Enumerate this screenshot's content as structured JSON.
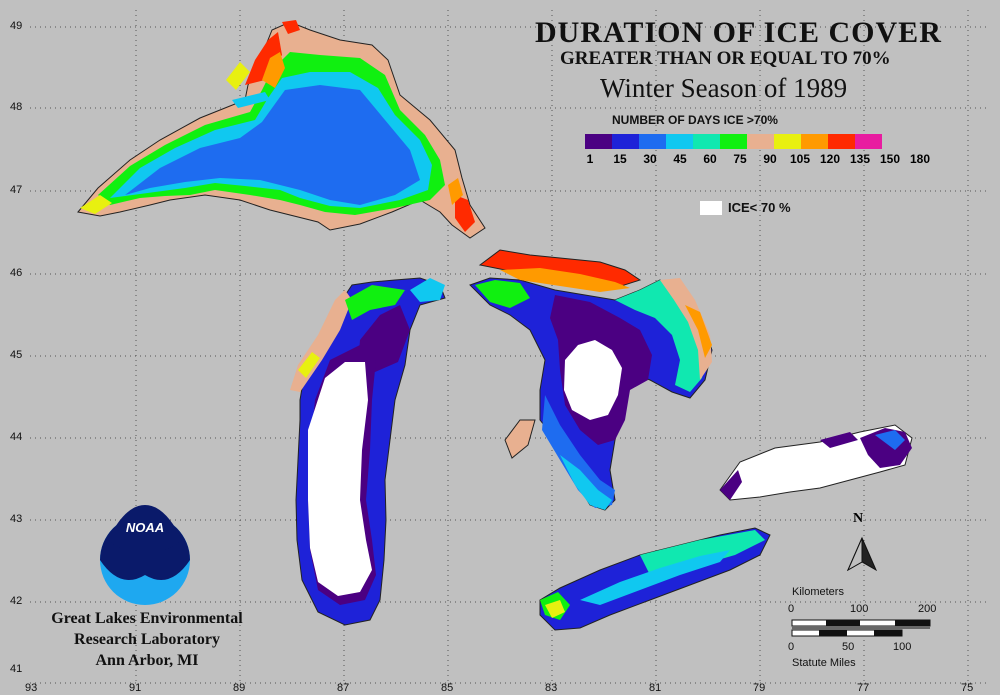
{
  "map": {
    "title": "DURATION OF ICE COVER",
    "subtitle": "GREATER THAN OR EQUAL TO 70%",
    "season": "Winter Season of 1989",
    "legend_title": "NUMBER OF DAYS ICE >70%",
    "legend_ticks": [
      "1",
      "15",
      "30",
      "45",
      "60",
      "75",
      "90",
      "105",
      "120",
      "135",
      "150",
      "180"
    ],
    "legend_colors": [
      "#4b0082",
      "#1e22d8",
      "#1e6cf0",
      "#10c8f0",
      "#10e8b0",
      "#10f010",
      "#e8b090",
      "#e8f010",
      "#ff9a00",
      "#ff2a00",
      "#e81ca0"
    ],
    "ice_below_label": "ICE< 70 %",
    "lab_lines": [
      "Great Lakes Environmental",
      "Research Laboratory",
      "Ann Arbor, MI"
    ],
    "noaa_label": "NOAA",
    "latitudes": [
      "49",
      "48",
      "47",
      "46",
      "45",
      "44",
      "43",
      "42",
      "41"
    ],
    "longitudes": [
      "93",
      "91",
      "89",
      "87",
      "85",
      "83",
      "81",
      "79",
      "77",
      "75"
    ],
    "scale": {
      "km_label": "Kilometers",
      "km_ticks": [
        "0",
        "100",
        "200"
      ],
      "mi_ticks": [
        "0",
        "50",
        "100"
      ],
      "mi_label": "Statute Miles"
    },
    "north": "N"
  }
}
